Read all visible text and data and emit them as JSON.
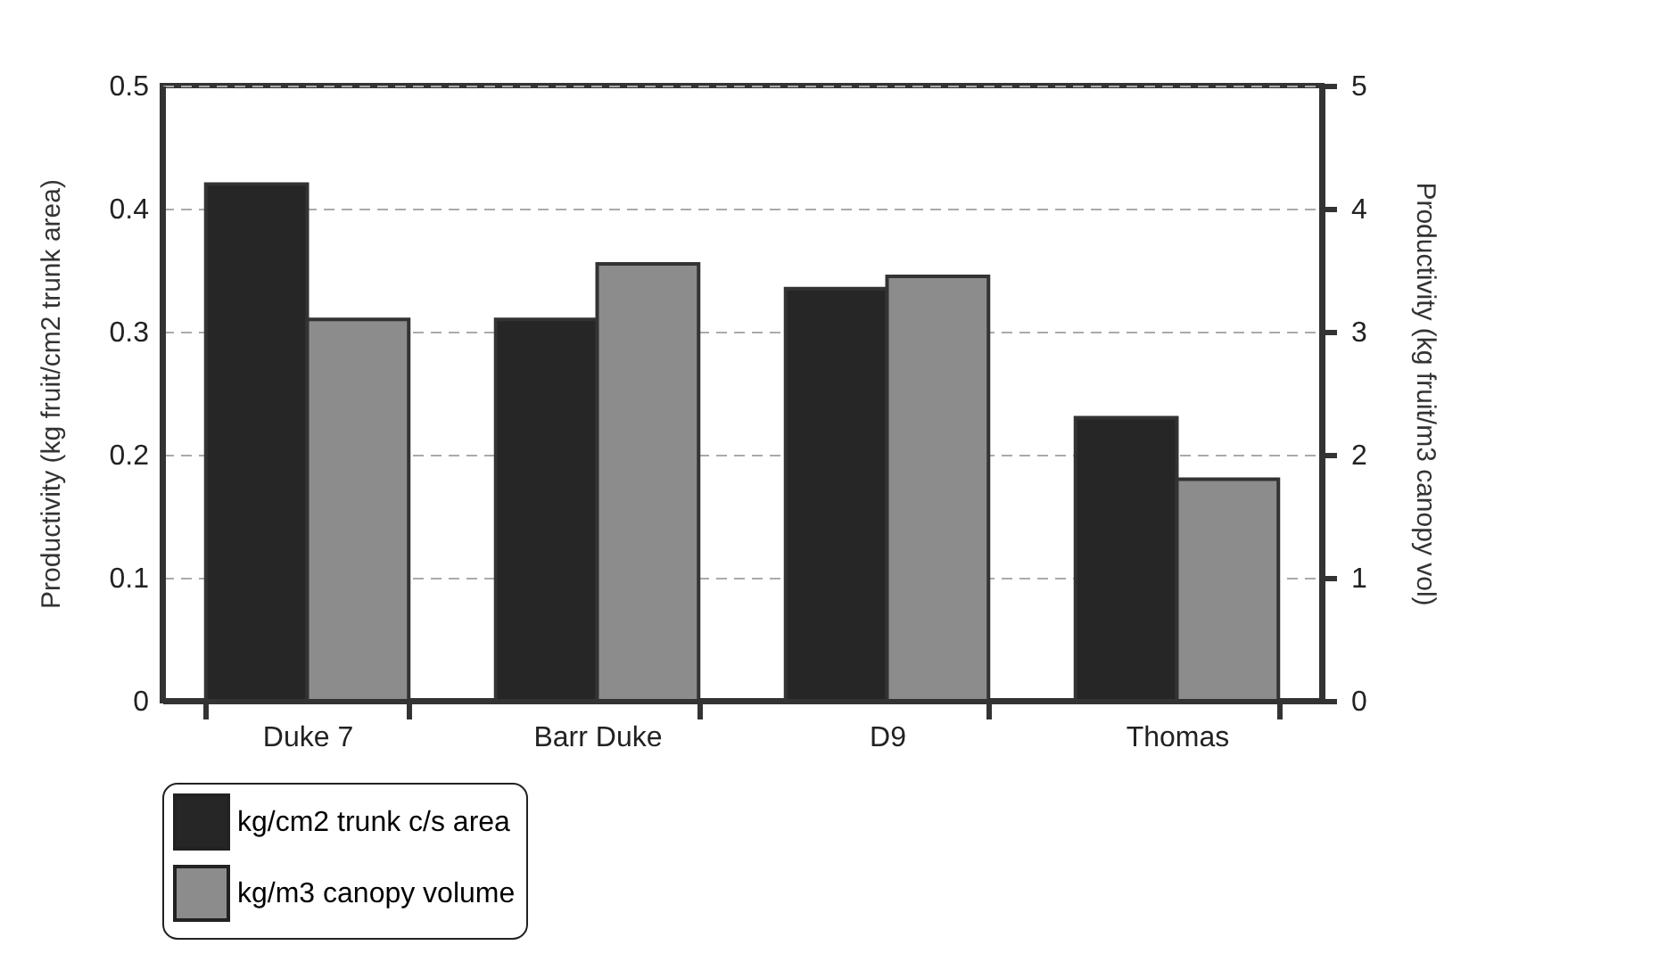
{
  "chart_data": {
    "type": "bar",
    "categories": [
      "Duke 7",
      "Barr Duke",
      "D9",
      "Thomas"
    ],
    "series": [
      {
        "name": "kg/cm2 trunk c/s area",
        "color": "#262626",
        "values": [
          0.42,
          0.31,
          0.335,
          0.23
        ]
      },
      {
        "name": "kg/m3 canopy volume",
        "color": "#8c8c8c",
        "values": [
          3.1,
          3.55,
          3.45,
          1.8
        ],
        "axis": "y2"
      }
    ],
    "ylabel": "Productivity (kg fruit/cm2 trunk area)",
    "y2label": "Productivity (kg fruit/m3 canopy vol)",
    "ylim": [
      0,
      0.5
    ],
    "yticks": [
      0,
      0.1,
      0.2,
      0.3,
      0.4,
      0.5
    ],
    "y2lim": [
      0,
      5
    ],
    "y2ticks": [
      0,
      1,
      2,
      3,
      4,
      5
    ],
    "grid": "y",
    "legend": "bottom"
  }
}
